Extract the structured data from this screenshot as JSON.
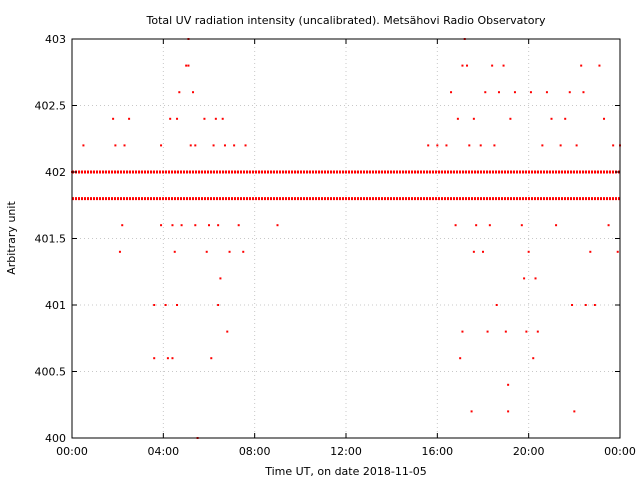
{
  "chart_data": {
    "type": "scatter",
    "title": "Total UV radiation intensity (uncalibrated). Metsähovi Radio Observatory",
    "xlabel": "Time UT, on date 2018-11-05",
    "ylabel": "Arbitrary unit",
    "xlim": [
      0,
      24
    ],
    "ylim": [
      400,
      403
    ],
    "x_ticks": [
      0,
      4,
      8,
      12,
      16,
      20,
      24
    ],
    "x_tick_labels": [
      "00:00",
      "04:00",
      "08:00",
      "12:00",
      "16:00",
      "20:00",
      "00:00"
    ],
    "y_ticks": [
      400,
      400.5,
      401,
      401.5,
      402,
      402.5,
      403
    ],
    "y_tick_labels": [
      "400",
      "400.5",
      "401",
      "401.5",
      "402",
      "402.5",
      "403"
    ],
    "grid": true,
    "legend": "none",
    "marker_color": "#ff0000",
    "series": [
      {
        "points": [
          {
            "x": 0.0,
            "y": 402.0
          },
          {
            "x": 0.5,
            "y": 402.2
          },
          {
            "x": 1.8,
            "y": 402.4
          },
          {
            "x": 1.9,
            "y": 402.2
          },
          {
            "x": 2.1,
            "y": 401.4
          },
          {
            "x": 2.2,
            "y": 401.6
          },
          {
            "x": 2.3,
            "y": 402.2
          },
          {
            "x": 2.5,
            "y": 402.4
          },
          {
            "x": 3.6,
            "y": 401.0
          },
          {
            "x": 3.6,
            "y": 400.6
          },
          {
            "x": 3.9,
            "y": 401.6
          },
          {
            "x": 3.9,
            "y": 402.2
          },
          {
            "x": 4.1,
            "y": 401.0
          },
          {
            "x": 4.2,
            "y": 400.6
          },
          {
            "x": 4.3,
            "y": 402.4
          },
          {
            "x": 4.4,
            "y": 400.6
          },
          {
            "x": 4.4,
            "y": 401.6
          },
          {
            "x": 4.5,
            "y": 401.4
          },
          {
            "x": 4.6,
            "y": 401.0
          },
          {
            "x": 4.6,
            "y": 402.4
          },
          {
            "x": 4.7,
            "y": 402.6
          },
          {
            "x": 4.8,
            "y": 401.6
          },
          {
            "x": 5.0,
            "y": 402.8
          },
          {
            "x": 5.1,
            "y": 402.8
          },
          {
            "x": 5.1,
            "y": 403.0
          },
          {
            "x": 5.2,
            "y": 402.2
          },
          {
            "x": 5.3,
            "y": 402.6
          },
          {
            "x": 5.4,
            "y": 401.6
          },
          {
            "x": 5.4,
            "y": 402.2
          },
          {
            "x": 5.5,
            "y": 400.0
          },
          {
            "x": 5.8,
            "y": 402.4
          },
          {
            "x": 5.9,
            "y": 401.4
          },
          {
            "x": 6.0,
            "y": 401.6
          },
          {
            "x": 6.1,
            "y": 400.6
          },
          {
            "x": 6.2,
            "y": 402.2
          },
          {
            "x": 6.3,
            "y": 402.4
          },
          {
            "x": 6.4,
            "y": 401.0
          },
          {
            "x": 6.4,
            "y": 401.6
          },
          {
            "x": 6.5,
            "y": 401.2
          },
          {
            "x": 6.6,
            "y": 402.4
          },
          {
            "x": 6.7,
            "y": 402.2
          },
          {
            "x": 6.8,
            "y": 400.8
          },
          {
            "x": 6.9,
            "y": 401.4
          },
          {
            "x": 7.1,
            "y": 402.2
          },
          {
            "x": 7.3,
            "y": 401.6
          },
          {
            "x": 7.5,
            "y": 401.4
          },
          {
            "x": 7.6,
            "y": 402.2
          },
          {
            "x": 9.0,
            "y": 401.6
          },
          {
            "x": 15.6,
            "y": 402.2
          },
          {
            "x": 16.0,
            "y": 402.2
          },
          {
            "x": 16.4,
            "y": 402.2
          },
          {
            "x": 16.6,
            "y": 402.6
          },
          {
            "x": 16.8,
            "y": 401.6
          },
          {
            "x": 16.9,
            "y": 402.4
          },
          {
            "x": 17.0,
            "y": 400.6
          },
          {
            "x": 17.1,
            "y": 400.8
          },
          {
            "x": 17.1,
            "y": 402.8
          },
          {
            "x": 17.2,
            "y": 403.0
          },
          {
            "x": 17.3,
            "y": 402.8
          },
          {
            "x": 17.4,
            "y": 402.2
          },
          {
            "x": 17.5,
            "y": 400.2
          },
          {
            "x": 17.6,
            "y": 402.4
          },
          {
            "x": 17.6,
            "y": 401.4
          },
          {
            "x": 17.7,
            "y": 401.6
          },
          {
            "x": 17.9,
            "y": 402.2
          },
          {
            "x": 18.0,
            "y": 401.4
          },
          {
            "x": 18.1,
            "y": 402.6
          },
          {
            "x": 18.2,
            "y": 400.8
          },
          {
            "x": 18.3,
            "y": 401.6
          },
          {
            "x": 18.4,
            "y": 402.8
          },
          {
            "x": 18.5,
            "y": 402.2
          },
          {
            "x": 18.6,
            "y": 401.0
          },
          {
            "x": 18.7,
            "y": 402.6
          },
          {
            "x": 18.9,
            "y": 402.8
          },
          {
            "x": 19.0,
            "y": 400.8
          },
          {
            "x": 19.1,
            "y": 400.4
          },
          {
            "x": 19.1,
            "y": 400.2
          },
          {
            "x": 19.2,
            "y": 402.4
          },
          {
            "x": 19.4,
            "y": 402.6
          },
          {
            "x": 19.7,
            "y": 401.6
          },
          {
            "x": 19.8,
            "y": 401.2
          },
          {
            "x": 19.9,
            "y": 400.8
          },
          {
            "x": 20.0,
            "y": 401.4
          },
          {
            "x": 20.1,
            "y": 402.6
          },
          {
            "x": 20.2,
            "y": 400.6
          },
          {
            "x": 20.3,
            "y": 401.2
          },
          {
            "x": 20.4,
            "y": 400.8
          },
          {
            "x": 20.6,
            "y": 402.2
          },
          {
            "x": 20.8,
            "y": 402.6
          },
          {
            "x": 21.0,
            "y": 402.4
          },
          {
            "x": 21.2,
            "y": 401.6
          },
          {
            "x": 21.4,
            "y": 402.2
          },
          {
            "x": 21.6,
            "y": 402.4
          },
          {
            "x": 21.8,
            "y": 402.6
          },
          {
            "x": 21.9,
            "y": 401.0
          },
          {
            "x": 22.0,
            "y": 400.2
          },
          {
            "x": 22.1,
            "y": 402.2
          },
          {
            "x": 22.3,
            "y": 402.8
          },
          {
            "x": 22.4,
            "y": 402.6
          },
          {
            "x": 22.5,
            "y": 401.0
          },
          {
            "x": 22.7,
            "y": 401.4
          },
          {
            "x": 22.9,
            "y": 401.0
          },
          {
            "x": 23.1,
            "y": 402.8
          },
          {
            "x": 23.3,
            "y": 402.4
          },
          {
            "x": 23.5,
            "y": 401.6
          },
          {
            "x": 23.7,
            "y": 402.2
          },
          {
            "x": 23.9,
            "y": 401.4
          },
          {
            "x": 24.0,
            "y": 402.2
          }
        ]
      }
    ]
  }
}
